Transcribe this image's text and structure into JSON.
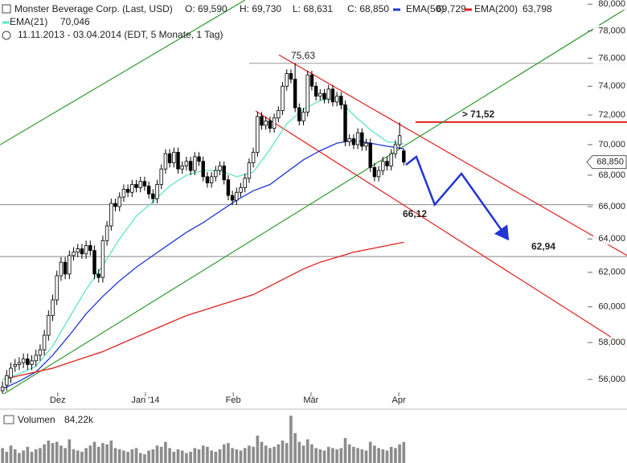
{
  "chart_data": {
    "type": "candlestick",
    "title": "Monster Beverage Corp. (Last, USD)",
    "header": [
      "O: 69,590",
      "H: 69,730",
      "L: 68,631",
      "C: 68,850"
    ],
    "period": "11.11.2013 - 03.04.2014 (EDT, 5 Monate, 1 Tag)",
    "xlim": [
      -0.6,
      149.4
    ],
    "xticks": [
      {
        "value": 13.2,
        "label": "Dez"
      },
      {
        "value": 34.2,
        "label": "Jan '14"
      },
      {
        "value": 55.2,
        "label": "Feb"
      },
      {
        "value": 73.8,
        "label": "Mär"
      },
      {
        "value": 94.8,
        "label": "Apr"
      }
    ],
    "ylim": [
      55.32,
      80.32
    ],
    "log": true,
    "yticks": [
      {
        "value": 56,
        "label": "56,000"
      },
      {
        "value": 58,
        "label": "58,000"
      },
      {
        "value": 60,
        "label": "60,000"
      },
      {
        "value": 62,
        "label": "62,000"
      },
      {
        "value": 64,
        "label": "64,000"
      },
      {
        "value": 66,
        "label": "66,000"
      },
      {
        "value": 68,
        "label": "68,000"
      },
      {
        "value": 70,
        "label": "70,000"
      },
      {
        "value": 72,
        "label": "72,000"
      },
      {
        "value": 74,
        "label": "74,000"
      },
      {
        "value": 76,
        "label": "76,000"
      },
      {
        "value": 78,
        "label": "78,000"
      },
      {
        "value": 80,
        "label": "80,000"
      }
    ],
    "up_color": "#ffffff",
    "down_color": "#000000",
    "open": [
      55.4,
      55.7,
      56.1,
      56.7,
      56.8,
      56.9,
      57.1,
      56.8,
      57.0,
      57.3,
      57.6,
      58.4,
      59.5,
      60.4,
      61.8,
      62.6,
      61.9,
      63.0,
      63.2,
      63.4,
      63.1,
      63.6,
      63.3,
      61.9,
      61.7,
      63.9,
      64.8,
      66.2,
      66.0,
      66.6,
      67.1,
      66.9,
      67.4,
      67.2,
      67.6,
      67.3,
      66.8,
      66.5,
      67.4,
      68.4,
      69.4,
      68.8,
      69.5,
      68.4,
      68.6,
      68.9,
      68.3,
      69.2,
      68.9,
      67.9,
      67.5,
      67.9,
      68.3,
      68.6,
      67.7,
      66.7,
      66.4,
      66.9,
      67.2,
      67.8,
      68.8,
      69.5,
      71.9,
      71.3,
      71.6,
      71.1,
      71.8,
      72.3,
      74.0,
      74.9,
      74.5,
      72.5,
      71.6,
      72.2,
      74.8,
      74.0,
      73.3,
      73.5,
      73.1,
      73.8,
      72.9,
      73.3,
      72.7,
      70.2,
      70.4,
      70.0,
      70.8,
      69.9,
      70.1,
      68.5,
      67.9,
      68.3,
      68.9,
      68.6,
      69.4,
      70.0,
      69.59
    ],
    "high": [
      55.9,
      56.5,
      56.9,
      57.1,
      57.2,
      57.4,
      57.4,
      57.3,
      57.6,
      57.9,
      58.7,
      59.8,
      60.7,
      62.1,
      62.9,
      62.9,
      63.3,
      63.5,
      63.7,
      63.7,
      63.9,
      63.9,
      63.6,
      62.2,
      64.2,
      65.1,
      66.5,
      66.5,
      66.9,
      67.4,
      67.4,
      67.7,
      67.7,
      67.9,
      67.9,
      67.6,
      67.1,
      67.7,
      68.7,
      69.7,
      69.7,
      69.8,
      69.8,
      68.9,
      69.2,
      69.2,
      69.5,
      69.5,
      69.2,
      68.2,
      68.2,
      68.6,
      68.9,
      68.9,
      68.0,
      67.0,
      67.2,
      67.5,
      68.1,
      69.1,
      69.8,
      72.2,
      72.2,
      71.9,
      71.9,
      72.1,
      72.6,
      74.3,
      75.2,
      75.2,
      75.63,
      72.8,
      72.5,
      75.1,
      75.1,
      74.3,
      73.8,
      73.8,
      74.1,
      74.1,
      73.6,
      73.6,
      73.0,
      70.7,
      70.7,
      71.1,
      71.1,
      70.4,
      70.4,
      68.8,
      68.6,
      69.2,
      69.2,
      69.7,
      70.3,
      71.5,
      69.73
    ],
    "low": [
      55.1,
      55.4,
      55.8,
      56.4,
      56.5,
      56.6,
      56.5,
      56.5,
      56.7,
      57.0,
      57.3,
      58.1,
      59.2,
      60.1,
      61.5,
      61.6,
      61.6,
      62.7,
      62.9,
      62.8,
      62.8,
      63.0,
      61.6,
      61.4,
      61.4,
      63.6,
      64.5,
      65.7,
      65.7,
      66.3,
      66.6,
      66.6,
      66.9,
      66.9,
      67.0,
      66.5,
      66.2,
      66.2,
      67.1,
      68.1,
      68.5,
      68.5,
      68.1,
      68.1,
      68.3,
      68.0,
      68.0,
      68.6,
      67.6,
      67.2,
      67.2,
      67.6,
      68.0,
      67.4,
      66.4,
      66.1,
      66.1,
      66.6,
      66.9,
      67.5,
      68.5,
      69.2,
      71.0,
      71.0,
      70.8,
      70.8,
      71.5,
      72.0,
      73.7,
      74.2,
      72.2,
      71.3,
      71.3,
      71.9,
      73.7,
      73.0,
      73.0,
      72.8,
      72.8,
      72.6,
      72.6,
      72.4,
      69.9,
      69.9,
      69.7,
      69.7,
      69.6,
      69.6,
      68.2,
      67.6,
      67.6,
      68.0,
      68.3,
      68.3,
      69.1,
      69.7,
      68.631
    ],
    "close": [
      55.6,
      56.2,
      56.6,
      56.8,
      56.9,
      57.1,
      56.8,
      57.0,
      57.3,
      57.6,
      58.4,
      59.5,
      60.4,
      61.8,
      62.6,
      61.9,
      63.0,
      63.2,
      63.4,
      63.1,
      63.6,
      63.3,
      61.9,
      61.7,
      63.9,
      64.8,
      66.2,
      66.0,
      66.6,
      67.1,
      66.9,
      67.4,
      67.2,
      67.6,
      67.3,
      66.8,
      66.5,
      67.4,
      68.4,
      69.4,
      68.8,
      69.5,
      68.4,
      68.6,
      68.9,
      68.3,
      69.2,
      68.9,
      67.9,
      67.5,
      67.9,
      68.3,
      68.6,
      67.7,
      66.7,
      66.4,
      66.9,
      67.2,
      67.8,
      68.8,
      69.5,
      71.9,
      71.3,
      71.6,
      71.1,
      71.8,
      72.3,
      74.0,
      74.9,
      74.5,
      72.5,
      71.6,
      72.2,
      74.8,
      74.0,
      73.3,
      73.5,
      73.1,
      73.8,
      72.9,
      73.3,
      72.7,
      70.2,
      70.4,
      70.0,
      70.8,
      69.9,
      70.1,
      68.5,
      67.9,
      68.3,
      68.9,
      68.6,
      69.4,
      70.0,
      70.6,
      68.85
    ],
    "last_label": "68,850",
    "series": [
      {
        "name": "EMA(50)",
        "color": "#1f35d6",
        "last_label": "69,729",
        "x": [
          0,
          4,
          8,
          12,
          16,
          20,
          24,
          28,
          32,
          36,
          40,
          44,
          48,
          52,
          56,
          60,
          64,
          68,
          72,
          76,
          80,
          84,
          88,
          92,
          96
        ],
        "values": [
          55.5,
          55.9,
          56.4,
          57.3,
          58.4,
          59.6,
          60.6,
          61.5,
          62.3,
          63.0,
          63.7,
          64.4,
          65.0,
          65.7,
          66.4,
          67.0,
          67.4,
          68.2,
          69.0,
          69.6,
          70.1,
          70.3,
          70.1,
          69.9,
          69.729
        ]
      },
      {
        "name": "EMA(200)",
        "color": "#e0201c",
        "last_label": "63,798",
        "x": [
          0,
          4,
          8,
          12,
          16,
          20,
          24,
          28,
          32,
          36,
          40,
          44,
          48,
          52,
          56,
          60,
          64,
          68,
          72,
          76,
          80,
          84,
          88,
          92,
          96
        ],
        "values": [
          56.0,
          56.2,
          56.4,
          56.6,
          56.9,
          57.2,
          57.5,
          57.9,
          58.3,
          58.7,
          59.1,
          59.5,
          59.8,
          60.1,
          60.4,
          60.7,
          61.2,
          61.7,
          62.2,
          62.6,
          62.9,
          63.2,
          63.4,
          63.6,
          63.798
        ]
      },
      {
        "name": "EMA(21)",
        "color": "#5fe3c6",
        "last_label": "70,046",
        "x": [
          0,
          4,
          8,
          12,
          16,
          20,
          24,
          28,
          32,
          36,
          40,
          44,
          48,
          52,
          56,
          60,
          64,
          68,
          72,
          76,
          80,
          84,
          88,
          92,
          96
        ],
        "values": [
          56.0,
          56.3,
          56.7,
          57.8,
          59.4,
          61.0,
          62.4,
          64.0,
          65.4,
          66.3,
          67.3,
          68.0,
          68.3,
          68.3,
          67.9,
          68.2,
          69.7,
          71.4,
          72.4,
          73.0,
          73.2,
          72.0,
          71.0,
          70.2,
          70.046
        ]
      }
    ],
    "levels": [
      {
        "value": 75.63,
        "label": "75,63",
        "from": 59.0,
        "to": 149.4,
        "color": "#999999",
        "label_color": "#888888"
      },
      {
        "value": 71.52,
        "label": "> 71,52",
        "from": 98.8,
        "to": 149.4,
        "color": "#e0201c",
        "label_color": "#e0201c"
      },
      {
        "value": 66.12,
        "label": "66,12",
        "from": -0.6,
        "to": 149.4,
        "color": "#888888",
        "label_color": "#1f35d6"
      },
      {
        "value": 62.94,
        "label": "62,94",
        "from": -0.6,
        "to": 149.4,
        "color": "#888888",
        "label_color": "#1f35d6"
      }
    ],
    "lines": [
      {
        "color": "#e0201c",
        "x": [
          66.13,
          149.4
        ],
        "values": [
          76.24,
          63.0
        ]
      },
      {
        "color": "#e0201c",
        "x": [
          60.55,
          149.4
        ],
        "values": [
          72.28,
          57.74
        ]
      },
      {
        "color": "#2e9a2e",
        "x": [
          -0.6,
          149.4
        ],
        "values": [
          55.11,
          79.71
        ]
      },
      {
        "color": "#2e9a2e",
        "x": [
          -0.6,
          58.05
        ],
        "values": [
          69.99,
          80.32
        ]
      }
    ],
    "projection": {
      "color": "#1f35d6",
      "x": [
        96.5,
        99.0,
        103.4,
        109.8,
        120.6
      ],
      "values": [
        68.67,
        69.2,
        66.12,
        68.1,
        64.1
      ]
    },
    "volume": {
      "name": "Volumen",
      "label": "84,22k",
      "color": "#8c8c8c",
      "vlim": [
        0,
        200
      ],
      "values": [
        60,
        45,
        70,
        55,
        40,
        50,
        65,
        45,
        55,
        60,
        75,
        90,
        80,
        85,
        70,
        60,
        95,
        55,
        50,
        45,
        60,
        70,
        85,
        65,
        80,
        75,
        90,
        60,
        55,
        50,
        45,
        55,
        60,
        40,
        35,
        50,
        55,
        70,
        65,
        85,
        60,
        45,
        55,
        50,
        40,
        45,
        60,
        55,
        70,
        65,
        50,
        45,
        55,
        75,
        80,
        60,
        55,
        50,
        60,
        70,
        65,
        110,
        85,
        70,
        60,
        65,
        75,
        90,
        80,
        190,
        120,
        85,
        70,
        95,
        75,
        60,
        55,
        50,
        65,
        60,
        55,
        60,
        100,
        75,
        65,
        60,
        55,
        50,
        85,
        70,
        60,
        55,
        50,
        65,
        60,
        75,
        84.22
      ]
    }
  }
}
